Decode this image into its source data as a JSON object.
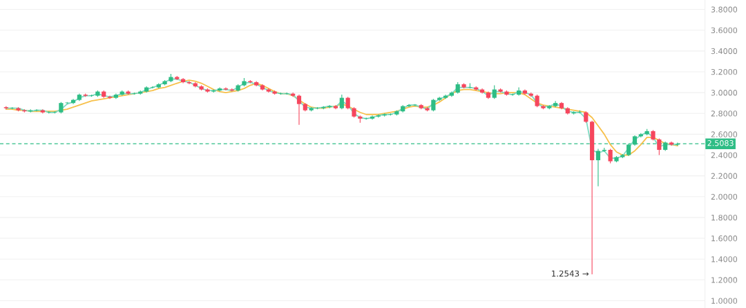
{
  "chart_data": {
    "type": "candlestick",
    "categories": [
      null,
      null,
      null,
      null,
      null,
      null,
      null,
      null,
      null,
      null,
      null,
      null,
      null,
      null,
      null,
      null,
      null,
      null,
      null,
      null,
      null,
      null,
      null,
      null,
      null,
      null,
      null,
      null,
      null,
      null,
      null,
      null,
      null,
      null,
      null,
      null,
      null,
      null,
      null,
      null,
      null,
      null,
      null,
      null,
      null,
      null,
      null,
      null,
      null,
      null,
      null,
      null,
      null,
      null,
      null,
      null,
      null,
      null,
      null,
      null,
      null,
      null,
      null,
      null,
      null,
      null,
      null,
      null,
      null,
      null,
      null,
      null,
      null,
      null,
      null,
      null,
      null,
      null,
      null,
      null,
      null,
      null,
      null,
      null,
      null,
      null,
      null,
      null,
      null,
      null,
      null,
      null,
      null,
      null,
      null,
      null,
      null,
      null,
      null,
      null,
      null,
      null,
      null,
      null,
      null,
      null,
      null,
      null,
      null,
      null,
      null
    ],
    "ohlc": [
      [
        2.86,
        2.87,
        2.84,
        2.85
      ],
      [
        2.85,
        2.86,
        2.84,
        2.85
      ],
      [
        2.85,
        2.86,
        2.82,
        2.83
      ],
      [
        2.83,
        2.84,
        2.81,
        2.82
      ],
      [
        2.82,
        2.84,
        2.81,
        2.83
      ],
      [
        2.83,
        2.84,
        2.82,
        2.83
      ],
      [
        2.83,
        2.84,
        2.8,
        2.81
      ],
      [
        2.81,
        2.82,
        2.8,
        2.81
      ],
      [
        2.81,
        2.82,
        2.8,
        2.81
      ],
      [
        2.81,
        2.91,
        2.8,
        2.9
      ],
      [
        2.9,
        2.91,
        2.89,
        2.9
      ],
      [
        2.9,
        2.94,
        2.89,
        2.93
      ],
      [
        2.93,
        2.99,
        2.92,
        2.98
      ],
      [
        2.98,
        2.99,
        2.96,
        2.97
      ],
      [
        2.97,
        2.98,
        2.96,
        2.97
      ],
      [
        2.97,
        3.02,
        2.96,
        3.01
      ],
      [
        3.01,
        3.02,
        2.95,
        2.96
      ],
      [
        2.96,
        2.97,
        2.94,
        2.95
      ],
      [
        2.95,
        2.99,
        2.94,
        2.98
      ],
      [
        2.98,
        3.02,
        2.97,
        3.01
      ],
      [
        3.01,
        3.02,
        2.98,
        2.99
      ],
      [
        2.99,
        3.0,
        2.98,
        2.99
      ],
      [
        2.99,
        3.02,
        2.98,
        3.01
      ],
      [
        3.01,
        3.06,
        3.0,
        3.05
      ],
      [
        3.05,
        3.06,
        3.04,
        3.05
      ],
      [
        3.05,
        3.09,
        3.04,
        3.08
      ],
      [
        3.08,
        3.12,
        3.07,
        3.11
      ],
      [
        3.11,
        3.18,
        3.1,
        3.15
      ],
      [
        3.15,
        3.16,
        3.12,
        3.13
      ],
      [
        3.13,
        3.14,
        3.09,
        3.1
      ],
      [
        3.1,
        3.11,
        3.08,
        3.09
      ],
      [
        3.09,
        3.1,
        3.05,
        3.06
      ],
      [
        3.06,
        3.07,
        3.02,
        3.03
      ],
      [
        3.03,
        3.04,
        3.0,
        3.01
      ],
      [
        3.01,
        3.03,
        3.0,
        3.02
      ],
      [
        3.02,
        3.05,
        3.01,
        3.04
      ],
      [
        3.04,
        3.05,
        3.02,
        3.03
      ],
      [
        3.03,
        3.04,
        3.01,
        3.02
      ],
      [
        3.02,
        3.08,
        3.01,
        3.07
      ],
      [
        3.07,
        3.14,
        3.06,
        3.11
      ],
      [
        3.11,
        3.12,
        3.09,
        3.1
      ],
      [
        3.1,
        3.11,
        3.06,
        3.07
      ],
      [
        3.07,
        3.08,
        3.02,
        3.03
      ],
      [
        3.03,
        3.04,
        3.0,
        3.01
      ],
      [
        3.01,
        3.02,
        2.98,
        2.99
      ],
      [
        2.99,
        3.0,
        2.98,
        2.99
      ],
      [
        2.99,
        3.0,
        2.98,
        2.99
      ],
      [
        2.99,
        3.0,
        2.96,
        2.97
      ],
      [
        2.97,
        2.98,
        2.69,
        2.89
      ],
      [
        2.89,
        2.9,
        2.82,
        2.83
      ],
      [
        2.83,
        2.86,
        2.82,
        2.85
      ],
      [
        2.85,
        2.86,
        2.84,
        2.85
      ],
      [
        2.85,
        2.87,
        2.84,
        2.86
      ],
      [
        2.86,
        2.88,
        2.85,
        2.87
      ],
      [
        2.87,
        2.88,
        2.84,
        2.85
      ],
      [
        2.85,
        2.98,
        2.84,
        2.95
      ],
      [
        2.95,
        2.96,
        2.84,
        2.85
      ],
      [
        2.85,
        2.86,
        2.76,
        2.77
      ],
      [
        2.77,
        2.78,
        2.71,
        2.75
      ],
      [
        2.75,
        2.76,
        2.74,
        2.75
      ],
      [
        2.75,
        2.78,
        2.74,
        2.77
      ],
      [
        2.77,
        2.79,
        2.76,
        2.78
      ],
      [
        2.78,
        2.8,
        2.77,
        2.79
      ],
      [
        2.79,
        2.8,
        2.78,
        2.79
      ],
      [
        2.79,
        2.83,
        2.78,
        2.82
      ],
      [
        2.82,
        2.88,
        2.81,
        2.87
      ],
      [
        2.87,
        2.89,
        2.86,
        2.88
      ],
      [
        2.88,
        2.89,
        2.87,
        2.88
      ],
      [
        2.88,
        2.89,
        2.84,
        2.85
      ],
      [
        2.85,
        2.86,
        2.82,
        2.83
      ],
      [
        2.83,
        2.94,
        2.82,
        2.93
      ],
      [
        2.93,
        2.96,
        2.92,
        2.95
      ],
      [
        2.95,
        2.98,
        2.94,
        2.97
      ],
      [
        2.97,
        3.01,
        2.96,
        3.0
      ],
      [
        3.0,
        3.1,
        2.99,
        3.08
      ],
      [
        3.08,
        3.09,
        3.04,
        3.05
      ],
      [
        3.05,
        3.09,
        3.04,
        3.05
      ],
      [
        3.05,
        3.06,
        3.02,
        3.03
      ],
      [
        3.03,
        3.04,
        2.99,
        3.0
      ],
      [
        3.0,
        3.01,
        2.94,
        2.95
      ],
      [
        2.95,
        3.07,
        2.94,
        3.03
      ],
      [
        3.03,
        3.04,
        3.0,
        3.01
      ],
      [
        3.01,
        3.02,
        2.97,
        2.98
      ],
      [
        2.98,
        2.99,
        2.97,
        2.98
      ],
      [
        2.98,
        3.05,
        2.97,
        3.02
      ],
      [
        3.02,
        3.03,
        2.98,
        2.99
      ],
      [
        2.99,
        3.0,
        2.96,
        2.97
      ],
      [
        2.97,
        2.98,
        2.86,
        2.87
      ],
      [
        2.87,
        2.88,
        2.84,
        2.85
      ],
      [
        2.85,
        2.88,
        2.84,
        2.87
      ],
      [
        2.87,
        2.92,
        2.86,
        2.9
      ],
      [
        2.9,
        2.91,
        2.84,
        2.85
      ],
      [
        2.85,
        2.86,
        2.79,
        2.8
      ],
      [
        2.8,
        2.82,
        2.79,
        2.81
      ],
      [
        2.81,
        2.83,
        2.8,
        2.81
      ],
      [
        2.81,
        2.82,
        2.71,
        2.72
      ],
      [
        2.72,
        2.73,
        1.2543,
        2.35
      ],
      [
        2.35,
        2.46,
        2.1,
        2.44
      ],
      [
        2.44,
        2.47,
        2.43,
        2.45
      ],
      [
        2.45,
        2.46,
        2.32,
        2.34
      ],
      [
        2.34,
        2.39,
        2.33,
        2.38
      ],
      [
        2.38,
        2.41,
        2.37,
        2.4
      ],
      [
        2.4,
        2.51,
        2.39,
        2.5
      ],
      [
        2.5,
        2.59,
        2.49,
        2.58
      ],
      [
        2.58,
        2.61,
        2.57,
        2.6
      ],
      [
        2.6,
        2.65,
        2.59,
        2.63
      ],
      [
        2.63,
        2.64,
        2.54,
        2.55
      ],
      [
        2.55,
        2.56,
        2.4,
        2.45
      ],
      [
        2.45,
        2.53,
        2.44,
        2.52
      ],
      [
        2.52,
        2.53,
        2.49,
        2.5
      ],
      [
        2.5,
        2.52,
        2.49,
        2.5083
      ]
    ],
    "colors": [
      "#f6465d",
      "#2ebd85",
      "#f6465d",
      "#f6465d",
      "#2ebd85",
      "#2ebd85",
      "#f6465d",
      "#2ebd85",
      "#2ebd85",
      "#2ebd85",
      "#2ebd85",
      "#2ebd85",
      "#2ebd85",
      "#f6465d",
      "#2ebd85",
      "#2ebd85",
      "#f6465d",
      "#f6465d",
      "#2ebd85",
      "#2ebd85",
      "#f6465d",
      "#2ebd85",
      "#2ebd85",
      "#2ebd85",
      "#2ebd85",
      "#2ebd85",
      "#2ebd85",
      "#2ebd85",
      "#f6465d",
      "#f6465d",
      "#f6465d",
      "#f6465d",
      "#f6465d",
      "#f6465d",
      "#2ebd85",
      "#2ebd85",
      "#f6465d",
      "#f6465d",
      "#2ebd85",
      "#2ebd85",
      "#f6465d",
      "#f6465d",
      "#f6465d",
      "#f6465d",
      "#f6465d",
      "#2ebd85",
      "#2ebd85",
      "#f6465d",
      "#f6465d",
      "#f6465d",
      "#2ebd85",
      "#2ebd85",
      "#2ebd85",
      "#2ebd85",
      "#f6465d",
      "#2ebd85",
      "#f6465d",
      "#f6465d",
      "#f6465d",
      "#2ebd85",
      "#2ebd85",
      "#2ebd85",
      "#2ebd85",
      "#2ebd85",
      "#2ebd85",
      "#2ebd85",
      "#2ebd85",
      "#2ebd85",
      "#f6465d",
      "#f6465d",
      "#2ebd85",
      "#2ebd85",
      "#2ebd85",
      "#2ebd85",
      "#2ebd85",
      "#f6465d",
      "#2ebd85",
      "#f6465d",
      "#f6465d",
      "#f6465d",
      "#2ebd85",
      "#f6465d",
      "#f6465d",
      "#2ebd85",
      "#2ebd85",
      "#f6465d",
      "#f6465d",
      "#f6465d",
      "#f6465d",
      "#2ebd85",
      "#2ebd85",
      "#f6465d",
      "#f6465d",
      "#2ebd85",
      "#2ebd85",
      "#f6465d",
      "#f6465d",
      "#2ebd85",
      "#2ebd85",
      "#f6465d",
      "#2ebd85",
      "#2ebd85",
      "#2ebd85",
      "#2ebd85",
      "#2ebd85",
      "#2ebd85",
      "#f6465d",
      "#f6465d",
      "#2ebd85",
      "#f6465d",
      "#2ebd85"
    ],
    "series": [
      {
        "type": "line",
        "color": "#f7c04a",
        "values": [
          2.84,
          2.84,
          2.83,
          2.83,
          2.82,
          2.82,
          2.82,
          2.82,
          2.82,
          2.83,
          2.84,
          2.86,
          2.88,
          2.9,
          2.92,
          2.93,
          2.94,
          2.95,
          2.96,
          2.97,
          2.98,
          2.99,
          3.0,
          3.01,
          3.02,
          3.04,
          3.05,
          3.07,
          3.09,
          3.11,
          3.12,
          3.11,
          3.09,
          3.06,
          3.03,
          3.01,
          3.0,
          3.01,
          3.02,
          3.04,
          3.07,
          3.09,
          3.07,
          3.04,
          3.01,
          2.99,
          2.99,
          2.97,
          2.93,
          2.89,
          2.86,
          2.85,
          2.85,
          2.86,
          2.87,
          2.89,
          2.87,
          2.84,
          2.81,
          2.79,
          2.79,
          2.79,
          2.8,
          2.81,
          2.82,
          2.84,
          2.86,
          2.87,
          2.86,
          2.86,
          2.88,
          2.91,
          2.95,
          2.99,
          3.02,
          3.03,
          3.03,
          3.02,
          3.01,
          3.0,
          2.99,
          2.99,
          3.0,
          3.0,
          3.0,
          2.98,
          2.94,
          2.9,
          2.88,
          2.87,
          2.86,
          2.85,
          2.84,
          2.83,
          2.82,
          2.81,
          2.76,
          2.68,
          2.6,
          2.5,
          2.43,
          2.4,
          2.4,
          2.44,
          2.5,
          2.57,
          2.57,
          2.54,
          2.51,
          2.5,
          2.49
        ]
      },
      {
        "type": "line",
        "color": "#7fdcc4",
        "values": [
          2.85,
          2.85,
          2.85,
          2.83,
          2.82,
          2.83,
          2.83,
          2.81,
          2.81,
          2.84,
          2.89,
          2.91,
          2.95,
          2.97,
          2.97,
          2.99,
          2.97,
          2.96,
          2.97,
          2.99,
          2.99,
          2.99,
          3.0,
          3.03,
          3.05,
          3.07,
          3.1,
          3.13,
          3.13,
          3.11,
          3.1,
          3.07,
          3.04,
          3.02,
          3.02,
          3.03,
          3.03,
          3.02,
          3.05,
          3.09,
          3.1,
          3.08,
          3.05,
          3.02,
          3.0,
          2.99,
          2.99,
          2.98,
          2.92,
          2.86,
          2.85,
          2.85,
          2.86,
          2.87,
          2.86,
          2.92,
          2.88,
          2.8,
          2.76,
          2.75,
          2.76,
          2.78,
          2.79,
          2.79,
          2.81,
          2.85,
          2.88,
          2.88,
          2.86,
          2.84,
          2.9,
          2.94,
          2.96,
          2.99,
          3.05,
          3.05,
          3.05,
          3.04,
          3.01,
          2.97,
          3.01,
          3.01,
          2.99,
          2.98,
          3.01,
          3.0,
          2.98,
          2.9,
          2.86,
          2.87,
          2.89,
          2.87,
          2.82,
          2.81,
          2.81,
          2.75,
          2.45,
          2.42,
          2.44,
          2.37,
          2.37,
          2.39,
          2.47,
          2.55,
          2.59,
          2.62,
          2.57,
          2.48,
          2.5,
          2.5,
          2.5
        ]
      }
    ],
    "ylim": [
      0.93,
      3.89
    ],
    "yticks": [
      {
        "value": 1.0,
        "label": "1.0000"
      },
      {
        "value": 1.2,
        "label": "1.2000"
      },
      {
        "value": 1.4,
        "label": "1.4000"
      },
      {
        "value": 1.6,
        "label": "1.6000"
      },
      {
        "value": 1.8,
        "label": "1.8000"
      },
      {
        "value": 2.0,
        "label": "2.0000"
      },
      {
        "value": 2.2,
        "label": "2.2000"
      },
      {
        "value": 2.4,
        "label": "2.4000"
      },
      {
        "value": 2.6,
        "label": "2.6000"
      },
      {
        "value": 2.8,
        "label": "2.8000"
      },
      {
        "value": 3.0,
        "label": "3.0000"
      },
      {
        "value": 3.2,
        "label": "3.2000"
      },
      {
        "value": 3.4,
        "label": "3.4000"
      },
      {
        "value": 3.6,
        "label": "3.6000"
      },
      {
        "value": 3.8,
        "label": "3.8000"
      }
    ],
    "ref_lines": [
      {
        "axis": "y",
        "value": 2.5083,
        "label": "2.5083",
        "color": "#2ebd85",
        "line_style": "dashed"
      }
    ],
    "annotations": [
      "1.2543 →"
    ],
    "grid": "y",
    "tick_labels": "y",
    "legend": false
  }
}
